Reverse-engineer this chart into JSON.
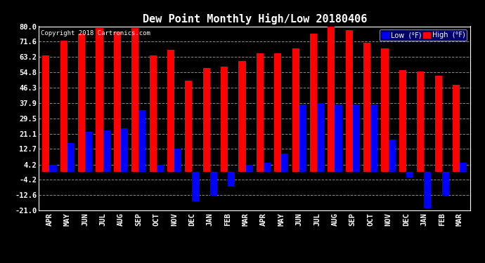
{
  "title": "Dew Point Monthly High/Low 20180406",
  "copyright": "Copyright 2018 Cartronics.com",
  "months": [
    "APR",
    "MAY",
    "JUN",
    "JUL",
    "AUG",
    "SEP",
    "OCT",
    "NOV",
    "DEC",
    "JAN",
    "FEB",
    "MAR",
    "APR",
    "MAY",
    "JUN",
    "JUL",
    "AUG",
    "SEP",
    "OCT",
    "NOV",
    "DEC",
    "JAN",
    "FEB",
    "MAR"
  ],
  "high_values": [
    64,
    72,
    76,
    79,
    77,
    79,
    64,
    67,
    50,
    57,
    58,
    61,
    65,
    65,
    68,
    76,
    80,
    78,
    71,
    68,
    56,
    55,
    53,
    48
  ],
  "low_values": [
    4,
    16,
    22,
    23,
    24,
    34,
    4,
    13,
    -16,
    -13,
    -8,
    4,
    5,
    10,
    37,
    38,
    37,
    37,
    37,
    18,
    -3,
    -20,
    -13,
    5
  ],
  "high_color": "#ff0000",
  "low_color": "#0000ff",
  "background_color": "#000000",
  "plot_bg_color": "#000000",
  "grid_color": "#888888",
  "text_color": "#ffffff",
  "ylim": [
    -21,
    80
  ],
  "yticks": [
    -21.0,
    -12.6,
    -4.2,
    4.2,
    12.7,
    21.1,
    29.5,
    37.9,
    46.3,
    54.8,
    63.2,
    71.6,
    80.0
  ],
  "bar_width": 0.4,
  "title_fontsize": 11,
  "tick_fontsize": 7.5,
  "legend_low_label": "Low  (°F)",
  "legend_high_label": "High  (°F)"
}
